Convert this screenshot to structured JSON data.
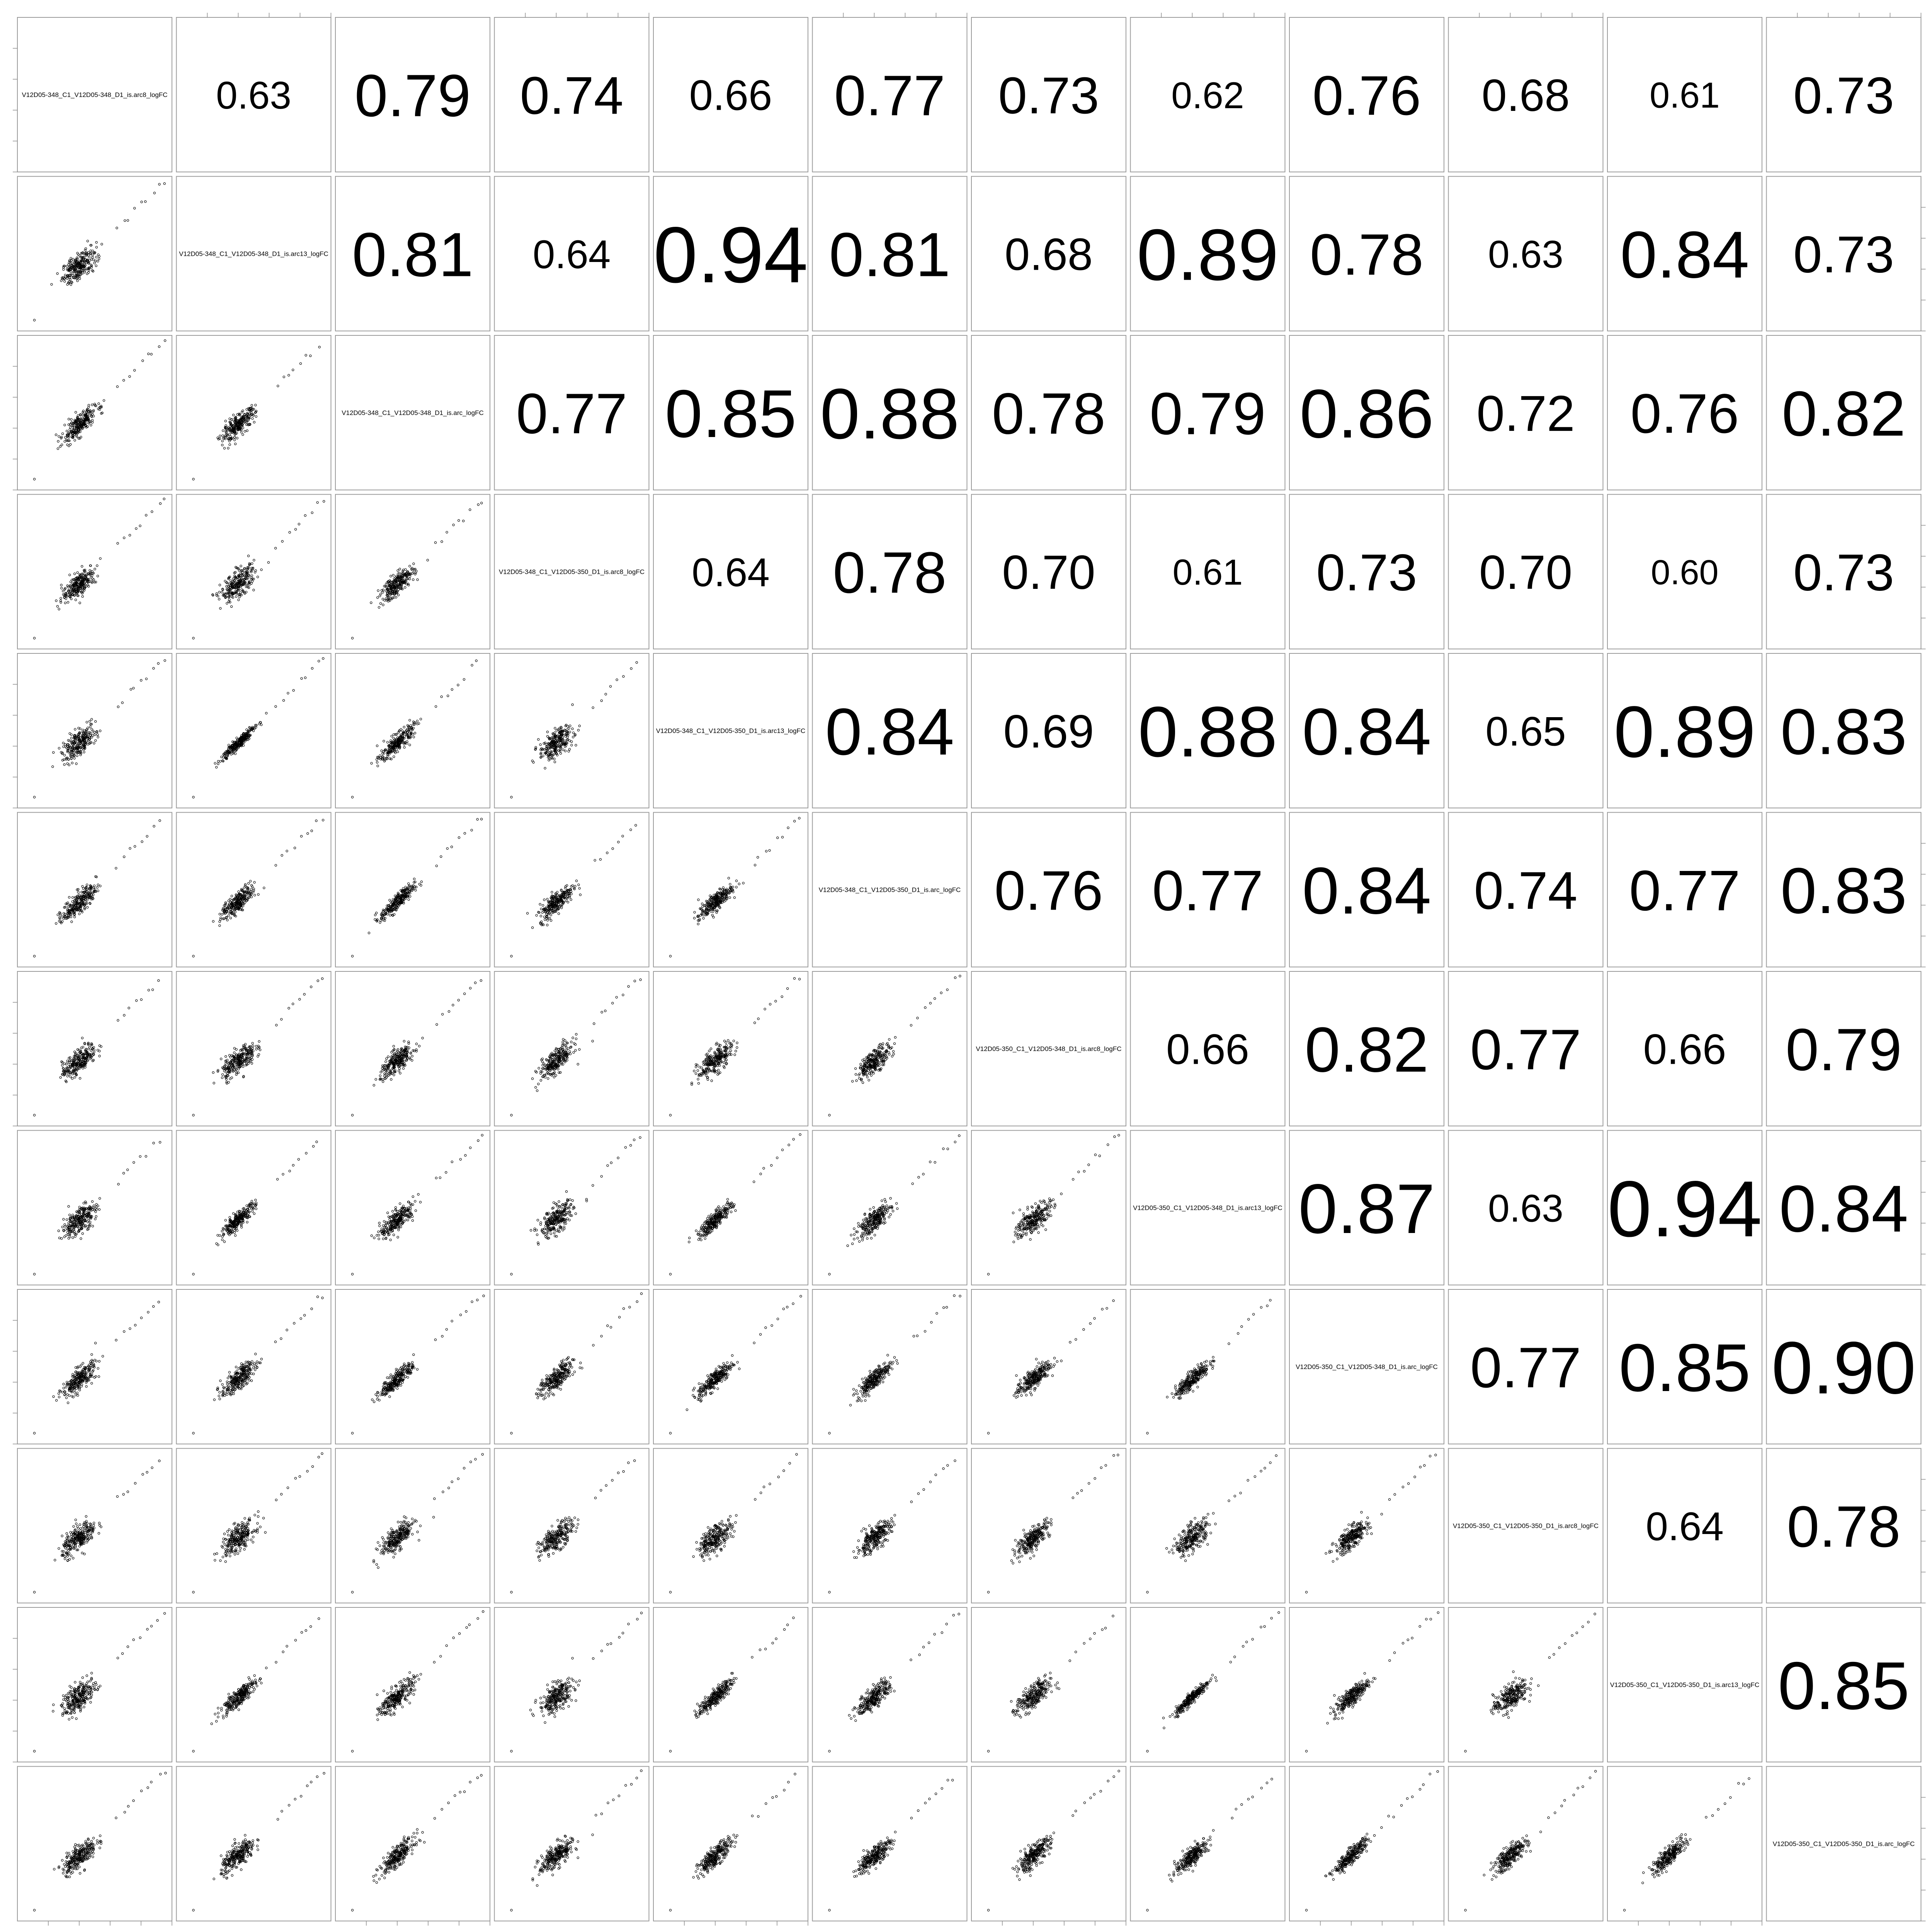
{
  "chart_data": {
    "type": "scatter",
    "variables": [
      "V12D05-348_C1_V12D05-348_D1_is.arc8_logFC",
      "V12D05-348_C1_V12D05-348_D1_is.arc13_logFC",
      "V12D05-348_C1_V12D05-348_D1_is.arc_logFC",
      "V12D05-348_C1_V12D05-350_D1_is.arc8_logFC",
      "V12D05-348_C1_V12D05-350_D1_is.arc13_logFC",
      "V12D05-348_C1_V12D05-350_D1_is.arc_logFC",
      "V12D05-350_C1_V12D05-348_D1_is.arc8_logFC",
      "V12D05-350_C1_V12D05-348_D1_is.arc13_logFC",
      "V12D05-350_C1_V12D05-348_D1_is.arc_logFC",
      "V12D05-350_C1_V12D05-350_D1_is.arc8_logFC",
      "V12D05-350_C1_V12D05-350_D1_is.arc13_logFC",
      "V12D05-350_C1_V12D05-350_D1_is.arc_logFC"
    ],
    "correlation_labels": [
      [
        "",
        "0.63",
        "0.79",
        "0.74",
        "0.66",
        "0.77",
        "0.73",
        "0.62",
        "0.76",
        "0.68",
        "0.61",
        "0.73"
      ],
      [
        "",
        "",
        "0.81",
        "0.64",
        "0.94",
        "0.81",
        "0.68",
        "0.89",
        "0.78",
        "0.63",
        "0.84",
        "0.73"
      ],
      [
        "",
        "",
        "",
        "0.77",
        "0.85",
        "0.88",
        "0.78",
        "0.79",
        "0.86",
        "0.72",
        "0.76",
        "0.82"
      ],
      [
        "",
        "",
        "",
        "",
        "0.64",
        "0.78",
        "0.70",
        "0.61",
        "0.73",
        "0.70",
        "0.60",
        "0.73"
      ],
      [
        "",
        "",
        "",
        "",
        "",
        "0.84",
        "0.69",
        "0.88",
        "0.84",
        "0.65",
        "0.89",
        "0.83"
      ],
      [
        "",
        "",
        "",
        "",
        "",
        "",
        "0.76",
        "0.77",
        "0.84",
        "0.74",
        "0.77",
        "0.83"
      ],
      [
        "",
        "",
        "",
        "",
        "",
        "",
        "",
        "0.66",
        "0.82",
        "0.77",
        "0.66",
        "0.79"
      ],
      [
        "",
        "",
        "",
        "",
        "",
        "",
        "",
        "",
        "0.87",
        "0.63",
        "0.94",
        "0.84"
      ],
      [
        "",
        "",
        "",
        "",
        "",
        "",
        "",
        "",
        "",
        "0.77",
        "0.85",
        "0.90"
      ],
      [
        "",
        "",
        "",
        "",
        "",
        "",
        "",
        "",
        "",
        "",
        "0.64",
        "0.78"
      ],
      [
        "",
        "",
        "",
        "",
        "",
        "",
        "",
        "",
        "",
        "",
        "",
        "0.85"
      ],
      [
        "",
        "",
        "",
        "",
        "",
        "",
        "",
        "",
        "",
        "",
        "",
        ""
      ]
    ],
    "layout": "pairs-matrix",
    "upper_panels": "correlation",
    "lower_panels": "scatter",
    "diagonal_panels": "variable name",
    "grid": false
  }
}
